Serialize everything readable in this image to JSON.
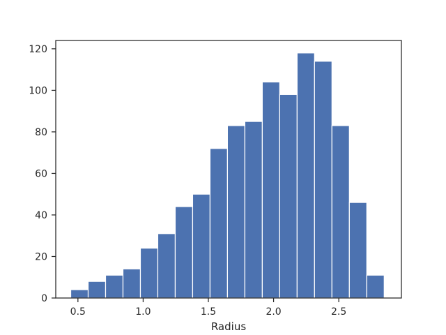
{
  "chart_data": {
    "type": "bar",
    "title": "",
    "xlabel": "Radius",
    "ylabel": "",
    "xlim": [
      0.33,
      2.98
    ],
    "ylim": [
      0,
      124
    ],
    "bin_edges": [
      0.445,
      0.5785,
      0.712,
      0.8455,
      0.979,
      1.1125,
      1.246,
      1.3795,
      1.513,
      1.6465,
      1.78,
      1.9135,
      2.047,
      2.1805,
      2.314,
      2.4475,
      2.581,
      2.7145,
      2.848
    ],
    "values": [
      4,
      8,
      11,
      14,
      24,
      31,
      44,
      50,
      72,
      83,
      85,
      104,
      98,
      118,
      114,
      83,
      46,
      11
    ],
    "x_ticks": [
      0.5,
      1.0,
      1.5,
      2.0,
      2.5
    ],
    "x_tick_labels": [
      "0.5",
      "1.0",
      "1.5",
      "2.0",
      "2.5"
    ],
    "y_ticks": [
      0,
      20,
      40,
      60,
      80,
      100,
      120
    ],
    "y_tick_labels": [
      "0",
      "20",
      "40",
      "60",
      "80",
      "100",
      "120"
    ],
    "grid": false,
    "bar_color": "#4c72b0",
    "bar_edge_color": "#ffffff",
    "axis_color": "#262626"
  }
}
